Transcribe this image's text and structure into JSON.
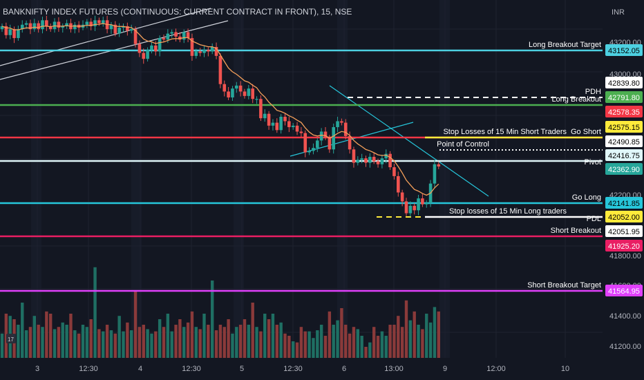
{
  "chart_data": {
    "type": "candlestick",
    "title": "BANKNIFTY INDEX FUTURES (CONTINUOUS: CURRENT CONTRACT IN FRONT), 15, NSE",
    "currency": "INR",
    "ylim": [
      41130,
      43380
    ],
    "y_ticks": [
      "43200.00",
      "43000.00",
      "42200.00",
      "41800.00",
      "41600.00",
      "41400.00",
      "41200.00"
    ],
    "x_ticks": [
      "3",
      "12:30",
      "4",
      "12:30",
      "5",
      "12:30",
      "6",
      "13:00",
      "9",
      "12:00",
      "10"
    ],
    "colors": {
      "background": "#131722",
      "up": "#26a69a",
      "down": "#ef5350",
      "ema": "#f5a05a",
      "grid": "#1f2330"
    },
    "closes": [
      43320,
      43260,
      43300,
      43240,
      43300,
      43330,
      43340,
      43300,
      43340,
      43300,
      43360,
      43320,
      43300,
      43350,
      43310,
      43320,
      43340,
      43300,
      43330,
      43310,
      43330,
      43350,
      43320,
      43360,
      43340,
      43360,
      43300,
      43330,
      43270,
      43310,
      43320,
      43290,
      43300,
      43200,
      43140,
      43100,
      43160,
      43190,
      43150,
      43240,
      43230,
      43270,
      43280,
      43250,
      43230,
      43280,
      43240,
      43120,
      43150,
      43140,
      43160,
      43150,
      43180,
      43120,
      42930,
      42880,
      42840,
      42900,
      42920,
      42880,
      42850,
      42900,
      42830,
      42830,
      42700,
      42730,
      42650,
      42670,
      42620,
      42710,
      42680,
      42640,
      42650,
      42610,
      42600,
      42470,
      42480,
      42500,
      42550,
      42610,
      42570,
      42490,
      42640,
      42680,
      42670,
      42580,
      42490,
      42400,
      42420,
      42430,
      42400,
      42440,
      42410,
      42390,
      42430,
      42460,
      42370,
      42310,
      42200,
      42140,
      42060,
      42110,
      42080,
      42160,
      42120,
      42130,
      42260,
      42390,
      42375
    ],
    "volumes": [
      22,
      40,
      38,
      35,
      30,
      50,
      25,
      28,
      38,
      30,
      28,
      42,
      40,
      26,
      28,
      32,
      30,
      40,
      25,
      22,
      30,
      28,
      35,
      82,
      26,
      24,
      30,
      25,
      22,
      38,
      24,
      32,
      25,
      60,
      28,
      30,
      26,
      22,
      24,
      35,
      28,
      40,
      24,
      30,
      35,
      28,
      32,
      42,
      28,
      26,
      40,
      30,
      70,
      25,
      30,
      28,
      35,
      22,
      28,
      30,
      35,
      30,
      50,
      28,
      24,
      40,
      35,
      40,
      30,
      32,
      22,
      20,
      15,
      14,
      28,
      24,
      24,
      18,
      25,
      30,
      20,
      42,
      30,
      34,
      45,
      30,
      22,
      28,
      26,
      20,
      10,
      14,
      28,
      20,
      24,
      20,
      30,
      30,
      38,
      28,
      52,
      34,
      42,
      30,
      26,
      40,
      32,
      46,
      42
    ],
    "levels": [
      {
        "label": "Long Breakout Target",
        "value": "43152.05",
        "line_color": "#4dd0e1",
        "badge_bg": "#4dd0e1",
        "badge_fg": "#000000",
        "style": "solid"
      },
      {
        "label": "PDH",
        "value": "42839.80",
        "line_color": "#ffffff",
        "badge_bg": "#ffffff",
        "badge_fg": "#000000",
        "style": "dashed"
      },
      {
        "label": "Long Breakout",
        "value": "42791.80",
        "line_color": "#4caf50",
        "badge_bg": "#4caf50",
        "badge_fg": "#ffffff",
        "style": "solid"
      },
      {
        "label": "Go Short",
        "value": "42578.35",
        "line_color": "#f23645",
        "badge_bg": "#f23645",
        "badge_fg": "#ffffff",
        "style": "solid"
      },
      {
        "label": "Stop Losses of 15 Min Short Traders",
        "value": "42575.15",
        "line_color": "#ffeb3b",
        "badge_bg": "#ffeb3b",
        "badge_fg": "#000000",
        "style": "solid"
      },
      {
        "label": "Point of Control",
        "value": "42490.85",
        "line_color": "#ffffff",
        "badge_bg": "#ffffff",
        "badge_fg": "#000000",
        "style": "dotted"
      },
      {
        "label": "",
        "value": "42416.75",
        "line_color": "#e0f7fa",
        "badge_bg": "#e0f7fa",
        "badge_fg": "#000000",
        "style": "solid"
      },
      {
        "label": "Pivot",
        "value": "42362.90",
        "line_color": "#26a69a",
        "badge_bg": "#26a69a",
        "badge_fg": "#ffffff",
        "style": "none"
      },
      {
        "label": "Go Long",
        "value": "42141.85",
        "line_color": "#26c6da",
        "badge_bg": "#26c6da",
        "badge_fg": "#000000",
        "style": "solid"
      },
      {
        "label": "",
        "value": "42052.00",
        "line_color": "#ffeb3b",
        "badge_bg": "#ffeb3b",
        "badge_fg": "#000000",
        "style": "dashed"
      },
      {
        "label": "Stop losses of  15 Min Long traders",
        "value": "42051.95",
        "line_color": "#ffffff",
        "badge_bg": "#ffffff",
        "badge_fg": "#000000",
        "style": "solid"
      },
      {
        "label": "PDL",
        "value": "42051.95",
        "line_color": "#ffffff",
        "badge_bg": "#ffffff",
        "badge_fg": "#000000",
        "style": "none"
      },
      {
        "label": "Short Breakout",
        "value": "41925.20",
        "line_color": "#e91e63",
        "badge_bg": "#e91e63",
        "badge_fg": "#ffffff",
        "style": "solid"
      },
      {
        "label": "Short Breakout Target",
        "value": "41564.95",
        "line_color": "#e040fb",
        "badge_bg": "#e040fb",
        "badge_fg": "#ffffff",
        "style": "solid"
      }
    ]
  }
}
